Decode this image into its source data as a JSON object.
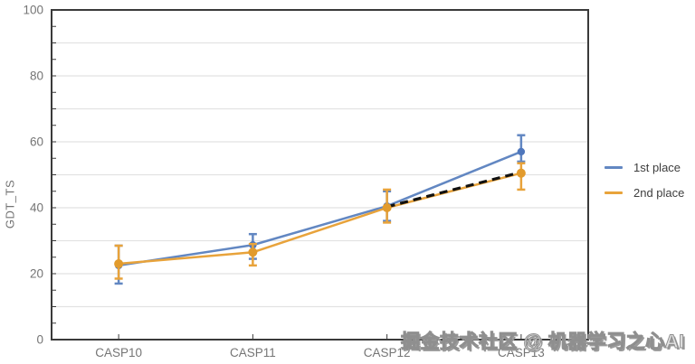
{
  "figure": {
    "watermark": "掘金技术社区 @ 机器学习之心AI"
  },
  "chart_data": {
    "type": "line",
    "title": "",
    "xlabel": "",
    "ylabel": "GDT_TS",
    "categories": [
      "CASP10",
      "CASP11",
      "CASP12",
      "CASP13"
    ],
    "ylim": [
      0,
      100
    ],
    "ytick_label_interval": 20,
    "ytick_labels": [
      "0",
      "20",
      "40",
      "60",
      "80",
      "100"
    ],
    "grid_interval": 10,
    "minor_tick_interval": 5,
    "grid": true,
    "legend_position": "right",
    "series": [
      {
        "name": "1st place",
        "color": "#6287c2",
        "point_color": "#4f77bc",
        "values": [
          22.5,
          28.7,
          40.5,
          57
        ],
        "err_low": [
          17,
          24.5,
          36,
          54
        ],
        "err_high": [
          28.5,
          32,
          45,
          62
        ]
      },
      {
        "name": "2nd place",
        "color": "#e8a33b",
        "point_color": "#e29b2d",
        "values": [
          23,
          26.5,
          40,
          50.5
        ],
        "err_low": [
          18.5,
          22.5,
          35.5,
          45.5
        ],
        "err_high": [
          28.5,
          29,
          45.5,
          53.5
        ]
      }
    ],
    "trend_line": {
      "style": "dashed",
      "color": "#111111",
      "from": "CASP12",
      "to": "CASP13",
      "values": [
        40.3,
        50.8
      ]
    }
  },
  "style": {
    "axis_color": "#3a3a3a",
    "grid_color": "#e2e2e2",
    "tick_label_color": "#757575",
    "legend_text_color": "#3d3d3d"
  }
}
